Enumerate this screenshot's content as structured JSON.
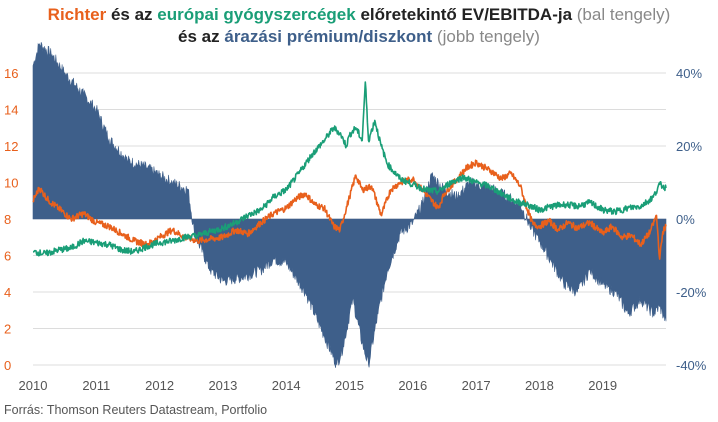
{
  "title": {
    "line1": [
      {
        "text": "Richter",
        "color": "#E8601C",
        "bold": true
      },
      {
        "text": " és az ",
        "color": "#222222",
        "bold": true
      },
      {
        "text": "európai gyógyszercégek",
        "color": "#1A9E77",
        "bold": true
      },
      {
        "text": " előretekintő EV/EBITDA-ja",
        "color": "#222222",
        "bold": true
      },
      {
        "text": " (bal tengely)",
        "color": "#888888",
        "bold": false
      }
    ],
    "line2": [
      {
        "text": "és az ",
        "color": "#222222",
        "bold": true
      },
      {
        "text": "árazási prémium/diszkont",
        "color": "#3E5F8A",
        "bold": true
      },
      {
        "text": " (jobb tengely)",
        "color": "#888888",
        "bold": false
      }
    ]
  },
  "source": "Forrás: Thomson Reuters Datastream, Portfolio",
  "chart_data": {
    "type": "line",
    "x_axis": {
      "ticks": [
        "2010",
        "2011",
        "2012",
        "2013",
        "2014",
        "2015",
        "2016",
        "2017",
        "2018",
        "2019"
      ],
      "range": [
        2010.0,
        2020.0
      ]
    },
    "y_left": {
      "ticks": [
        "0",
        "2",
        "4",
        "6",
        "8",
        "10",
        "12",
        "14",
        "16"
      ],
      "range": [
        0,
        16
      ]
    },
    "y_right": {
      "ticks": [
        "-40%",
        "-20%",
        "0%",
        "20%",
        "40%"
      ],
      "range": [
        -40,
        40
      ]
    },
    "grid": true,
    "series": [
      {
        "axis": "left",
        "kind": "line",
        "color": "#E8601C",
        "points": [
          [
            2010.0,
            9.0
          ],
          [
            2010.1,
            9.7
          ],
          [
            2010.25,
            9.0
          ],
          [
            2010.4,
            8.6
          ],
          [
            2010.6,
            8.0
          ],
          [
            2010.8,
            8.3
          ],
          [
            2011.0,
            7.8
          ],
          [
            2011.2,
            7.6
          ],
          [
            2011.4,
            7.2
          ],
          [
            2011.6,
            6.8
          ],
          [
            2011.8,
            6.6
          ],
          [
            2012.0,
            7.0
          ],
          [
            2012.2,
            7.4
          ],
          [
            2012.4,
            7.0
          ],
          [
            2012.6,
            6.8
          ],
          [
            2012.8,
            6.9
          ],
          [
            2013.0,
            7.0
          ],
          [
            2013.2,
            7.4
          ],
          [
            2013.4,
            7.2
          ],
          [
            2013.6,
            7.8
          ],
          [
            2013.8,
            8.3
          ],
          [
            2014.0,
            8.6
          ],
          [
            2014.15,
            9.1
          ],
          [
            2014.3,
            9.4
          ],
          [
            2014.45,
            8.8
          ],
          [
            2014.6,
            8.6
          ],
          [
            2014.75,
            7.6
          ],
          [
            2014.85,
            7.4
          ],
          [
            2015.0,
            9.2
          ],
          [
            2015.1,
            10.4
          ],
          [
            2015.2,
            9.6
          ],
          [
            2015.35,
            9.8
          ],
          [
            2015.5,
            8.2
          ],
          [
            2015.65,
            9.6
          ],
          [
            2015.8,
            10.0
          ],
          [
            2016.0,
            10.2
          ],
          [
            2016.2,
            9.4
          ],
          [
            2016.4,
            8.6
          ],
          [
            2016.5,
            9.4
          ],
          [
            2016.7,
            10.2
          ],
          [
            2016.85,
            10.8
          ],
          [
            2017.0,
            11.1
          ],
          [
            2017.1,
            10.9
          ],
          [
            2017.25,
            10.6
          ],
          [
            2017.4,
            10.2
          ],
          [
            2017.55,
            10.5
          ],
          [
            2017.7,
            9.8
          ],
          [
            2017.8,
            8.6
          ],
          [
            2017.9,
            7.7
          ],
          [
            2018.0,
            7.6
          ],
          [
            2018.15,
            7.9
          ],
          [
            2018.3,
            7.4
          ],
          [
            2018.45,
            7.8
          ],
          [
            2018.6,
            7.5
          ],
          [
            2018.8,
            7.8
          ],
          [
            2019.0,
            7.2
          ],
          [
            2019.15,
            7.6
          ],
          [
            2019.3,
            7.0
          ],
          [
            2019.45,
            7.1
          ],
          [
            2019.6,
            6.6
          ],
          [
            2019.75,
            7.3
          ],
          [
            2019.85,
            8.2
          ],
          [
            2019.9,
            5.8
          ],
          [
            2019.95,
            7.3
          ],
          [
            2020.0,
            7.6
          ]
        ]
      },
      {
        "axis": "left",
        "kind": "line",
        "color": "#1A9E77",
        "points": [
          [
            2010.0,
            6.2
          ],
          [
            2010.2,
            6.1
          ],
          [
            2010.4,
            6.3
          ],
          [
            2010.6,
            6.4
          ],
          [
            2010.8,
            6.8
          ],
          [
            2011.0,
            6.7
          ],
          [
            2011.2,
            6.6
          ],
          [
            2011.4,
            6.3
          ],
          [
            2011.6,
            6.2
          ],
          [
            2011.8,
            6.5
          ],
          [
            2012.0,
            6.7
          ],
          [
            2012.2,
            6.8
          ],
          [
            2012.4,
            7.0
          ],
          [
            2012.6,
            7.1
          ],
          [
            2012.8,
            7.3
          ],
          [
            2013.0,
            7.5
          ],
          [
            2013.2,
            7.8
          ],
          [
            2013.4,
            8.2
          ],
          [
            2013.6,
            8.5
          ],
          [
            2013.8,
            9.2
          ],
          [
            2014.0,
            9.6
          ],
          [
            2014.2,
            10.5
          ],
          [
            2014.4,
            11.5
          ],
          [
            2014.6,
            12.3
          ],
          [
            2014.75,
            13.0
          ],
          [
            2014.85,
            12.7
          ],
          [
            2014.95,
            12.0
          ],
          [
            2015.0,
            12.6
          ],
          [
            2015.1,
            13.0
          ],
          [
            2015.2,
            12.3
          ],
          [
            2015.25,
            15.5
          ],
          [
            2015.3,
            12.3
          ],
          [
            2015.4,
            13.4
          ],
          [
            2015.5,
            12.0
          ],
          [
            2015.6,
            11.0
          ],
          [
            2015.8,
            10.2
          ],
          [
            2016.0,
            9.9
          ],
          [
            2016.2,
            9.6
          ],
          [
            2016.4,
            9.5
          ],
          [
            2016.6,
            10.0
          ],
          [
            2016.8,
            10.3
          ],
          [
            2017.0,
            10.0
          ],
          [
            2017.2,
            9.8
          ],
          [
            2017.4,
            9.4
          ],
          [
            2017.6,
            9.0
          ],
          [
            2017.8,
            8.8
          ],
          [
            2018.0,
            8.5
          ],
          [
            2018.2,
            8.7
          ],
          [
            2018.4,
            8.8
          ],
          [
            2018.6,
            8.7
          ],
          [
            2018.8,
            8.9
          ],
          [
            2019.0,
            8.5
          ],
          [
            2019.2,
            8.4
          ],
          [
            2019.4,
            8.6
          ],
          [
            2019.6,
            8.7
          ],
          [
            2019.8,
            9.2
          ],
          [
            2019.9,
            9.9
          ],
          [
            2020.0,
            9.7
          ]
        ]
      },
      {
        "axis": "right",
        "kind": "area",
        "color": "#3E5F8A",
        "points": [
          [
            2010.0,
            42
          ],
          [
            2010.1,
            48
          ],
          [
            2010.3,
            45
          ],
          [
            2010.5,
            40
          ],
          [
            2010.8,
            34
          ],
          [
            2011.0,
            30
          ],
          [
            2011.2,
            22
          ],
          [
            2011.5,
            16
          ],
          [
            2011.8,
            14
          ],
          [
            2012.0,
            12
          ],
          [
            2012.2,
            10
          ],
          [
            2012.45,
            8
          ],
          [
            2012.55,
            -4
          ],
          [
            2012.8,
            -14
          ],
          [
            2013.0,
            -17
          ],
          [
            2013.3,
            -16
          ],
          [
            2013.6,
            -14
          ],
          [
            2013.8,
            -11
          ],
          [
            2014.0,
            -12
          ],
          [
            2014.3,
            -20
          ],
          [
            2014.6,
            -32
          ],
          [
            2014.8,
            -40
          ],
          [
            2014.9,
            -35
          ],
          [
            2015.05,
            -22
          ],
          [
            2015.2,
            -34
          ],
          [
            2015.3,
            -40
          ],
          [
            2015.45,
            -26
          ],
          [
            2015.6,
            -14
          ],
          [
            2015.8,
            -4
          ],
          [
            2016.0,
            -1
          ],
          [
            2016.15,
            4
          ],
          [
            2016.3,
            12
          ],
          [
            2016.5,
            8
          ],
          [
            2016.7,
            6
          ],
          [
            2016.9,
            10
          ],
          [
            2017.1,
            9
          ],
          [
            2017.3,
            8
          ],
          [
            2017.5,
            6
          ],
          [
            2017.7,
            4
          ],
          [
            2017.85,
            -2
          ],
          [
            2018.0,
            -6
          ],
          [
            2018.2,
            -12
          ],
          [
            2018.4,
            -18
          ],
          [
            2018.6,
            -20
          ],
          [
            2018.8,
            -14
          ],
          [
            2019.0,
            -18
          ],
          [
            2019.2,
            -20
          ],
          [
            2019.4,
            -26
          ],
          [
            2019.6,
            -22
          ],
          [
            2019.8,
            -26
          ],
          [
            2019.9,
            -24
          ],
          [
            2020.0,
            -28
          ]
        ]
      }
    ]
  }
}
